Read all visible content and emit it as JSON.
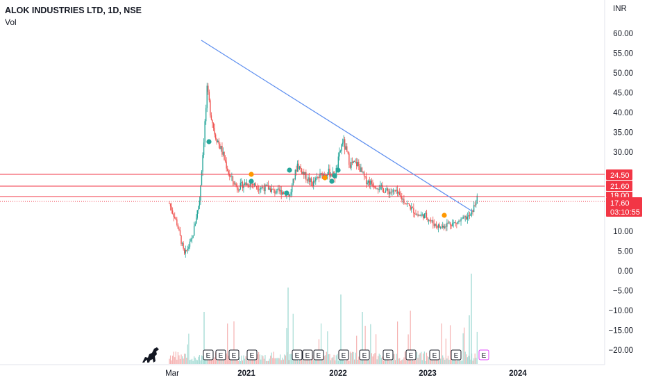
{
  "header": {
    "title": "ALOK INDUSTRIES LTD, 1D, NSE",
    "volume_label": "Vol"
  },
  "axis": {
    "currency": "INR",
    "y_ticks": [
      "60.00",
      "55.00",
      "50.00",
      "45.00",
      "40.00",
      "35.00",
      "30.00",
      "10.00",
      "5.00",
      "0.00",
      "−5.00",
      "−10.00",
      "−15.00",
      "−20.00"
    ],
    "x_ticks": [
      "Mar",
      "2021",
      "2022",
      "2023",
      "2024"
    ]
  },
  "price_labels": {
    "level_1": "24.50",
    "level_2": "21.60",
    "level_3": "19.00",
    "current": "17.60",
    "countdown": "03:10:55"
  },
  "earnings_marker": "E",
  "colors": {
    "up": "#26a69a",
    "down": "#ef5350",
    "trendline": "#5b8def",
    "level_line": "#f23645",
    "badge_red": "#f23645",
    "earnings_future": "#e040fb",
    "dot_green": "#26a69a",
    "dot_orange": "#ff9800"
  },
  "chart_data": {
    "type": "candlestick",
    "title": "ALOK INDUSTRIES LTD, 1D, NSE",
    "ylabel": "INR",
    "ylim": [
      -22,
      63
    ],
    "price_series": {
      "dates": [
        "2020-02",
        "2020-03",
        "2020-04",
        "2020-05",
        "2020-06",
        "2020-07",
        "2020-08",
        "2020-09",
        "2020-10",
        "2020-11",
        "2020-12",
        "2021-01",
        "2021-02",
        "2021-03",
        "2021-04",
        "2021-05",
        "2021-06",
        "2021-07",
        "2021-08",
        "2021-09",
        "2021-10",
        "2021-11",
        "2021-12",
        "2022-01",
        "2022-02",
        "2022-03",
        "2022-04",
        "2022-05",
        "2022-06",
        "2022-07",
        "2022-08",
        "2022-09",
        "2022-10",
        "2022-11",
        "2022-12",
        "2023-01",
        "2023-02",
        "2023-03",
        "2023-04",
        "2023-05",
        "2023-06",
        "2023-07"
      ],
      "close": [
        17,
        12,
        4,
        8,
        18,
        45,
        35,
        30,
        24,
        21,
        22,
        22,
        21,
        21,
        20,
        20,
        19,
        27,
        24,
        22,
        24,
        25,
        24,
        33,
        27,
        27,
        23,
        22,
        21,
        20,
        20,
        18,
        16,
        14,
        14,
        12,
        11,
        12,
        12,
        13,
        14,
        19
      ]
    },
    "trendline": {
      "start": [
        "2020-07",
        58.5
      ],
      "end": [
        "2023-07",
        14.5
      ]
    },
    "horizontal_levels": [
      24.5,
      21.6,
      19.0
    ],
    "last_price": 17.6,
    "volume_series": {
      "note_free": true,
      "relative_peaks": [
        "2021-07",
        "2022-01",
        "2022-03",
        "2023-07"
      ]
    },
    "earnings_events": [
      "2020-11",
      "2020-12",
      "2021-01",
      "2021-02",
      "2021-10",
      "2021-11",
      "2021-12",
      "2022-02",
      "2022-04",
      "2022-07",
      "2022-10",
      "2023-01",
      "2023-04",
      "2023-07"
    ],
    "dividend_events_green": [
      "2020-09",
      "2021-01",
      "2021-03",
      "2021-07",
      "2021-08",
      "2022-01",
      "2022-02",
      "2022-03"
    ],
    "dividend_events_orange": [
      "2021-01",
      "2021-12",
      "2023-02"
    ],
    "x_ticks": [
      "Mar",
      "2021",
      "2022",
      "2023",
      "2024"
    ],
    "grid": false
  }
}
